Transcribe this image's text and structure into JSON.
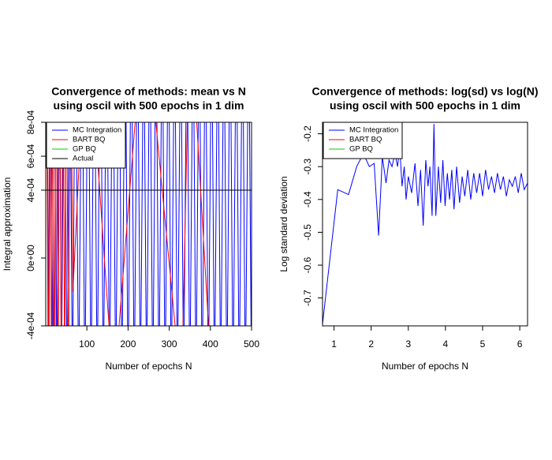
{
  "chart_data": [
    {
      "type": "line",
      "title": [
        "Convergence of methods: mean vs N",
        "using oscil with 500 epochs in 1 dim"
      ],
      "xlabel": "Number of epochs N",
      "ylabel": "Integral approximation",
      "xlim": [
        0,
        500
      ],
      "xticks": [
        100,
        200,
        300,
        400,
        500
      ],
      "ylim": [
        -0.0004,
        0.0008
      ],
      "yticks": [
        {
          "value": -0.0004,
          "label": "-4e-04"
        },
        {
          "value": 0,
          "label": "0e+00"
        },
        {
          "value": 0.0004,
          "label": "4e-04"
        },
        {
          "value": 0.0006,
          "label": "6e-04"
        },
        {
          "value": 0.0008,
          "label": "8e-04"
        }
      ],
      "legend": "topleft",
      "series": [
        {
          "name": "MC Integration",
          "color": "#0000ff",
          "x": [
            3,
            7,
            12,
            18,
            22,
            27,
            33,
            38,
            45,
            52,
            58,
            65,
            72,
            80,
            88,
            95,
            103,
            110,
            118,
            125,
            133,
            140,
            148,
            155,
            163,
            170,
            178,
            185,
            193,
            200,
            208,
            215,
            223,
            230,
            238,
            245,
            253,
            260,
            268,
            275,
            283,
            290,
            298,
            305,
            313,
            320,
            328,
            335,
            343,
            350,
            358,
            365,
            373,
            380,
            388,
            395,
            403,
            410,
            418,
            425,
            433,
            440,
            448,
            455,
            463,
            470,
            478,
            485,
            493,
            500
          ],
          "values": [
            0.0015,
            -0.0008,
            0.0015,
            -0.0008,
            0.0015,
            -0.0008,
            0.0015,
            -0.0008,
            0.0015,
            -0.0008,
            0.0015,
            -0.0008,
            0.0015,
            -0.0008,
            0.0015,
            -0.0008,
            0.0015,
            -0.0008,
            0.0015,
            -0.0008,
            0.0015,
            -0.0008,
            0.0015,
            -0.0008,
            0.0015,
            -0.0008,
            0.0015,
            -0.0008,
            0.0015,
            -0.0008,
            0.0015,
            -0.0008,
            0.0015,
            -0.0008,
            0.0015,
            -0.0008,
            0.0015,
            -0.0008,
            0.0015,
            -0.0008,
            0.0015,
            -0.0008,
            0.0015,
            -0.0008,
            0.0015,
            -0.0008,
            0.0015,
            -0.0008,
            0.0015,
            -0.0008,
            0.0015,
            -0.0008,
            0.0015,
            -0.0008,
            0.0015,
            -0.0008,
            0.0015,
            -0.0008,
            0.0015,
            -0.0008,
            0.0015,
            -0.0008,
            0.0015,
            -0.0008,
            0.0015,
            -0.0008,
            0.0015,
            -0.0008,
            0.0015,
            -0.0008
          ]
        },
        {
          "name": "BART BQ",
          "color": "#ff0000",
          "x": [
            2,
            6,
            10,
            14,
            18,
            22,
            26,
            30,
            34,
            38,
            42,
            46,
            50,
            55,
            60,
            66,
            100,
            165,
            240,
            330,
            350,
            405
          ],
          "values": [
            0.0015,
            -0.0008,
            0.0015,
            -0.0008,
            0.0015,
            -0.0008,
            0.0015,
            -0.0008,
            0.0015,
            -0.0008,
            0.0015,
            -0.0008,
            0.0015,
            -0.0008,
            0.0015,
            -0.0002,
            0.0015,
            -0.0008,
            0.0015,
            -0.0008,
            0.0015,
            -0.0008
          ]
        },
        {
          "name": "GP BQ",
          "color": "#00cc00",
          "x": [],
          "values": []
        },
        {
          "name": "Actual",
          "color": "#000000",
          "x": [
            0,
            500
          ],
          "values": [
            0.0004,
            0.0004
          ]
        }
      ]
    },
    {
      "type": "line",
      "title": [
        "Convergence of methods: log(sd) vs log(N)",
        "using oscil with 500 epochs in 1 dim"
      ],
      "xlabel": "Number of epochs N",
      "ylabel": "Log standard deviation",
      "xlim": [
        0.69,
        6.21
      ],
      "xticks": [
        1,
        2,
        3,
        4,
        5,
        6
      ],
      "ylim": [
        -0.785,
        -0.165
      ],
      "yticks": [
        -0.7,
        -0.6,
        -0.5,
        -0.4,
        -0.3,
        -0.2
      ],
      "legend": "topleft",
      "series": [
        {
          "name": "MC Integration",
          "color": "#0000ff",
          "x": [
            0.69,
            1.1,
            1.39,
            1.61,
            1.79,
            1.95,
            2.08,
            2.2,
            2.3,
            2.4,
            2.48,
            2.56,
            2.64,
            2.71,
            2.77,
            2.83,
            2.89,
            2.94,
            3.0,
            3.09,
            3.18,
            3.26,
            3.33,
            3.4,
            3.47,
            3.53,
            3.58,
            3.64,
            3.69,
            3.74,
            3.81,
            3.87,
            3.93,
            3.99,
            4.05,
            4.11,
            4.17,
            4.23,
            4.3,
            4.38,
            4.45,
            4.52,
            4.6,
            4.68,
            4.76,
            4.84,
            4.92,
            5.0,
            5.08,
            5.16,
            5.24,
            5.32,
            5.4,
            5.48,
            5.56,
            5.64,
            5.72,
            5.8,
            5.88,
            5.96,
            6.04,
            6.12,
            6.21
          ],
          "values": [
            -0.78,
            -0.37,
            -0.385,
            -0.3,
            -0.26,
            -0.3,
            -0.29,
            -0.51,
            -0.27,
            -0.35,
            -0.28,
            -0.3,
            -0.26,
            -0.3,
            -0.24,
            -0.36,
            -0.3,
            -0.4,
            -0.33,
            -0.38,
            -0.29,
            -0.42,
            -0.31,
            -0.48,
            -0.28,
            -0.36,
            -0.3,
            -0.45,
            -0.17,
            -0.45,
            -0.3,
            -0.41,
            -0.28,
            -0.42,
            -0.32,
            -0.4,
            -0.31,
            -0.43,
            -0.3,
            -0.41,
            -0.33,
            -0.39,
            -0.31,
            -0.4,
            -0.32,
            -0.38,
            -0.32,
            -0.39,
            -0.31,
            -0.37,
            -0.33,
            -0.38,
            -0.32,
            -0.37,
            -0.33,
            -0.39,
            -0.34,
            -0.36,
            -0.33,
            -0.38,
            -0.32,
            -0.37,
            -0.35
          ]
        },
        {
          "name": "BART BQ",
          "color": "#ff0000",
          "x": [],
          "values": []
        },
        {
          "name": "GP BQ",
          "color": "#00cc00",
          "x": [],
          "values": []
        }
      ]
    }
  ]
}
